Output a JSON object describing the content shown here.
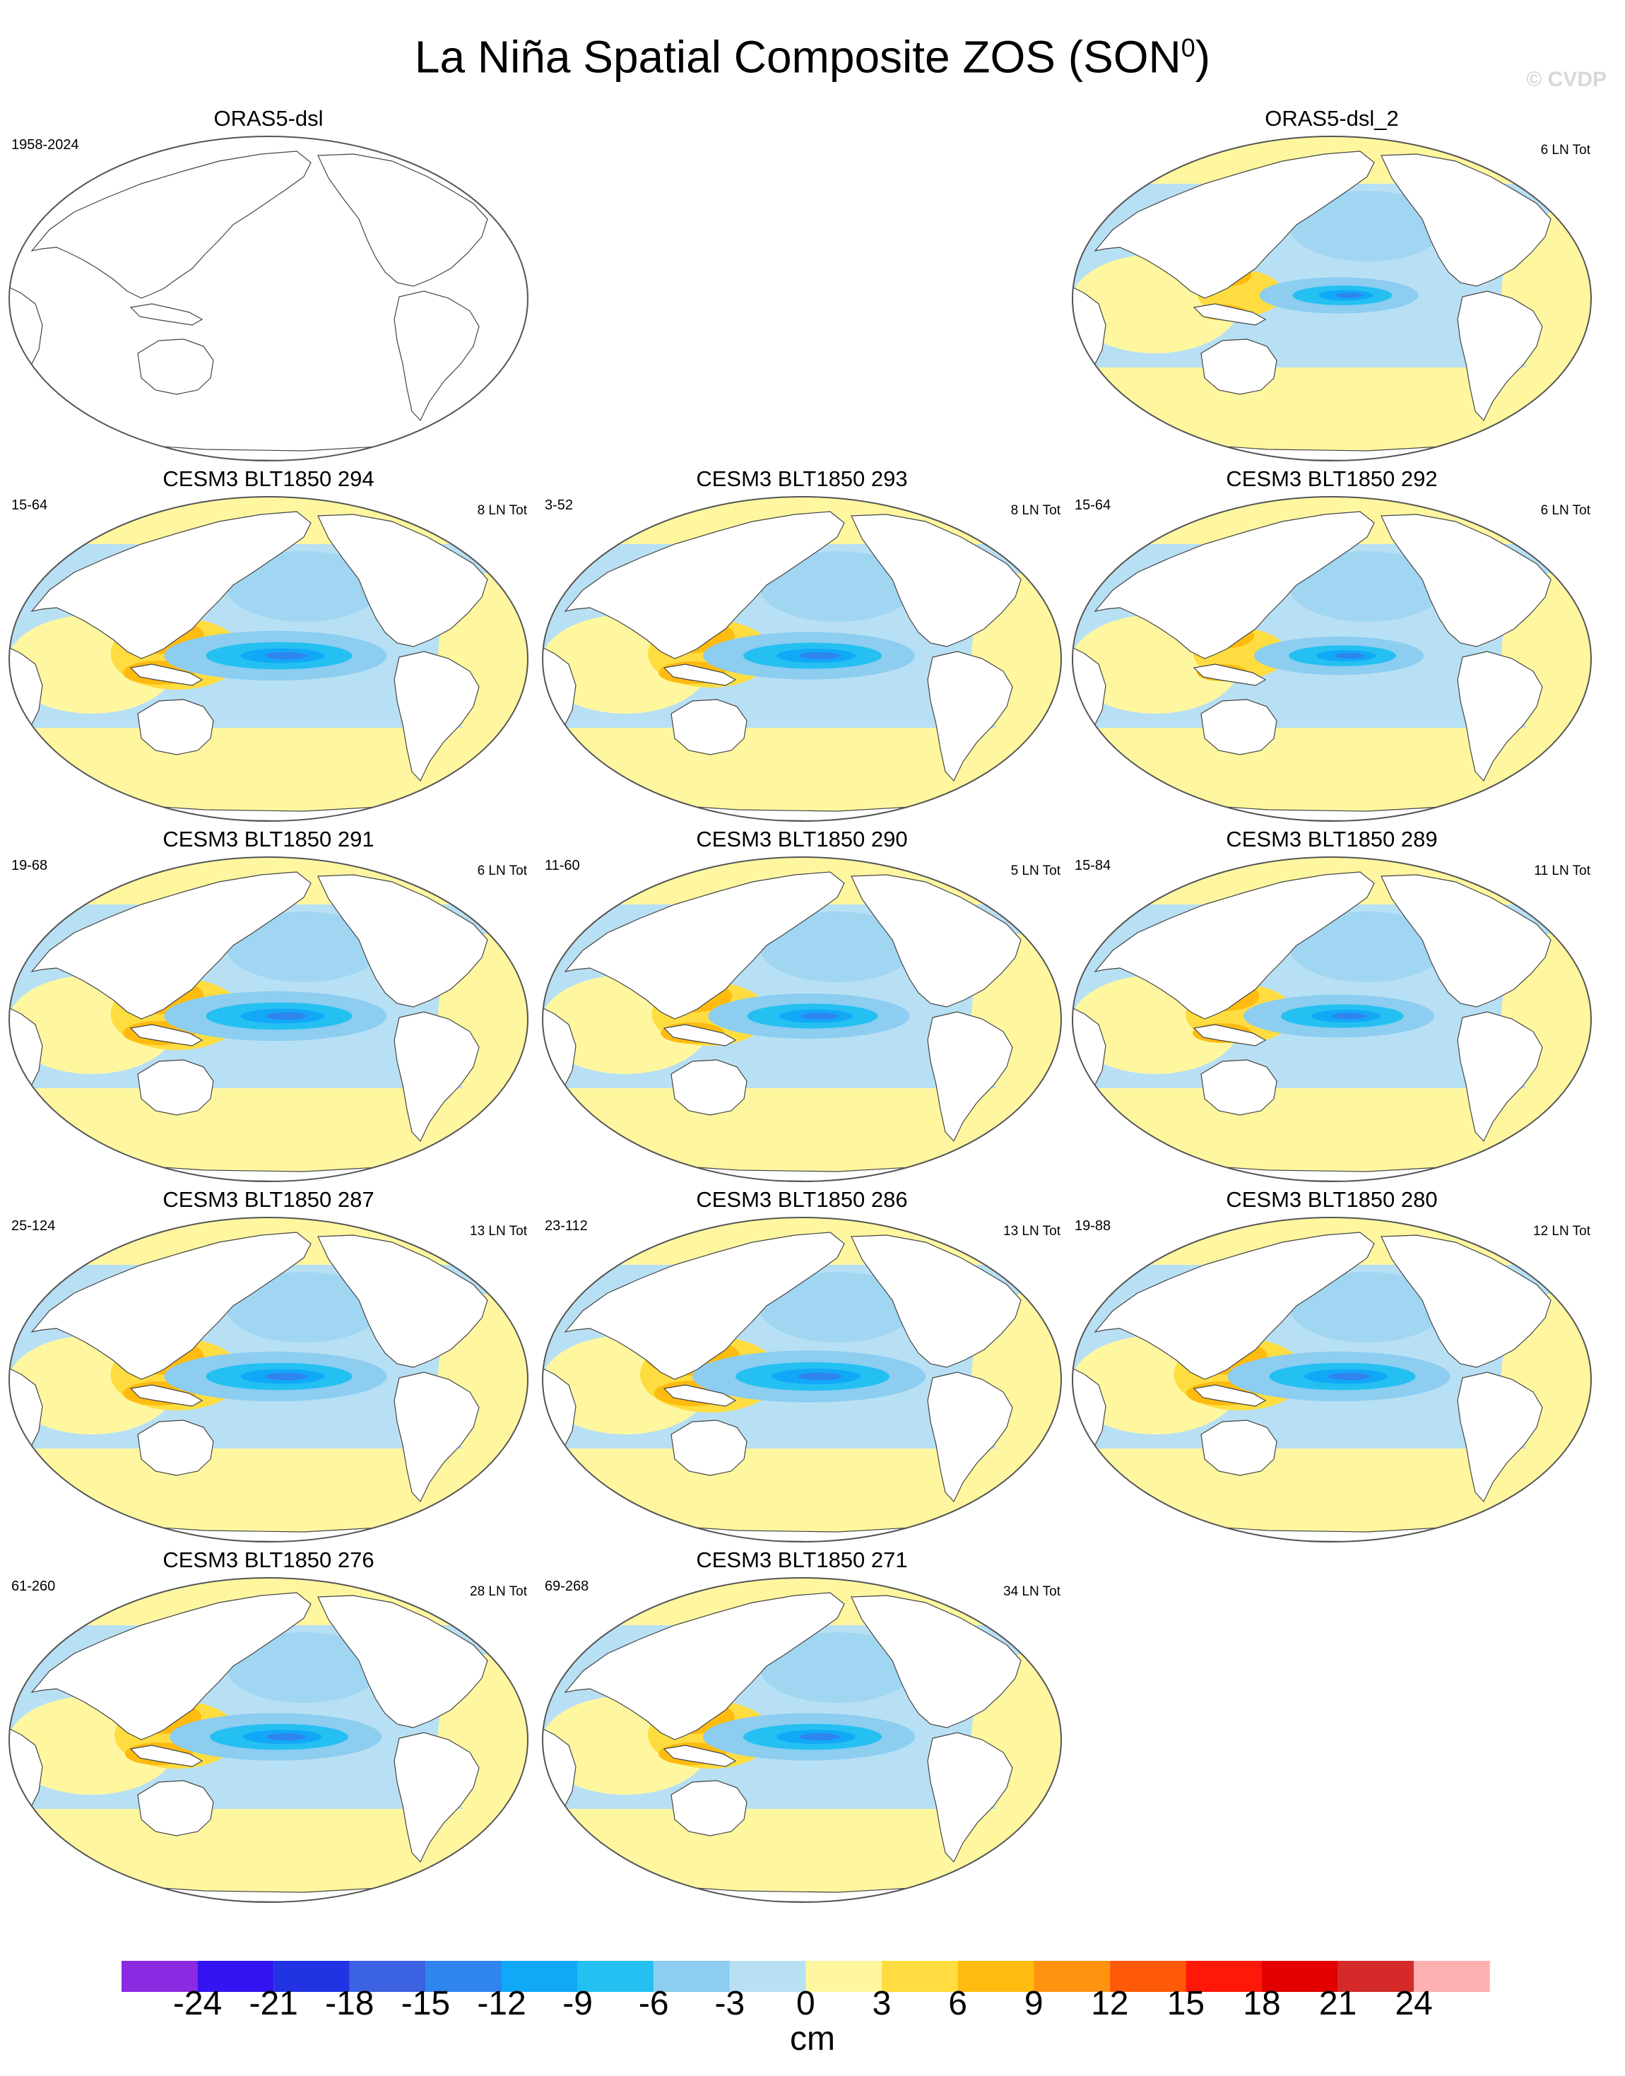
{
  "title": "La Niña Spatial Composite ZOS (SON",
  "title_sup": "0",
  "title_close": ")",
  "watermark": "© CVDP",
  "colors": {
    "land": "#ffffff",
    "outline": "#555555",
    "coast": "#444444"
  },
  "chart_data": {
    "type": "heatmap",
    "projection": "robinson-like global maps, Pacific-centered",
    "variable": "ZOS",
    "season": "SON",
    "units": "cm",
    "colorbar": {
      "labels": [
        "-24",
        "-21",
        "-18",
        "-15",
        "-12",
        "-9",
        "-6",
        "-3",
        "0",
        "3",
        "6",
        "9",
        "12",
        "15",
        "18",
        "21",
        "24"
      ],
      "colors": [
        "#8a2be2",
        "#3414f0",
        "#2233e4",
        "#3b62e0",
        "#2f84ee",
        "#12a8f8",
        "#24c0f2",
        "#8ccdf0",
        "#b8e0f4",
        "#fff7a0",
        "#ffdd40",
        "#ffbb10",
        "#ff9310",
        "#ff5a08",
        "#ff1808",
        "#e20000",
        "#d42a2a",
        "#ffb0b0"
      ]
    },
    "panels": [
      {
        "title": "ORAS5-dsl",
        "period": "1958-2024",
        "events": "",
        "empty": true
      },
      {
        "title": "ORAS5-dsl_2",
        "period": "",
        "events": "6 LN Tot",
        "empty": false,
        "strength": 0.55
      },
      {
        "title": "CESM3 BLT1850 294",
        "period": "15-64",
        "events": "8 LN Tot",
        "empty": false,
        "strength": 0.85
      },
      {
        "title": "CESM3 BLT1850 293",
        "period": "3-52",
        "events": "8 LN Tot",
        "empty": false,
        "strength": 0.8
      },
      {
        "title": "CESM3 BLT1850 292",
        "period": "15-64",
        "events": "6 LN Tot",
        "empty": false,
        "strength": 0.6
      },
      {
        "title": "CESM3 BLT1850 291",
        "period": "19-68",
        "events": "6 LN Tot",
        "empty": false,
        "strength": 0.85
      },
      {
        "title": "CESM3 BLT1850 290",
        "period": "11-60",
        "events": "5 LN Tot",
        "empty": false,
        "strength": 0.75
      },
      {
        "title": "CESM3 BLT1850 289",
        "period": "15-84",
        "events": "11 LN Tot",
        "empty": false,
        "strength": 0.7
      },
      {
        "title": "CESM3 BLT1850 287",
        "period": "25-124",
        "events": "13 LN Tot",
        "empty": false,
        "strength": 0.85
      },
      {
        "title": "CESM3 BLT1850 286",
        "period": "23-112",
        "events": "13 LN Tot",
        "empty": false,
        "strength": 0.9
      },
      {
        "title": "CESM3 BLT1850 280",
        "period": "19-88",
        "events": "12 LN Tot",
        "empty": false,
        "strength": 0.85
      },
      {
        "title": "CESM3 BLT1850 276",
        "period": "61-260",
        "events": "28 LN Tot",
        "empty": false,
        "strength": 0.8
      },
      {
        "title": "CESM3 BLT1850 271",
        "period": "69-268",
        "events": "34 LN Tot",
        "empty": false,
        "strength": 0.8
      }
    ]
  }
}
